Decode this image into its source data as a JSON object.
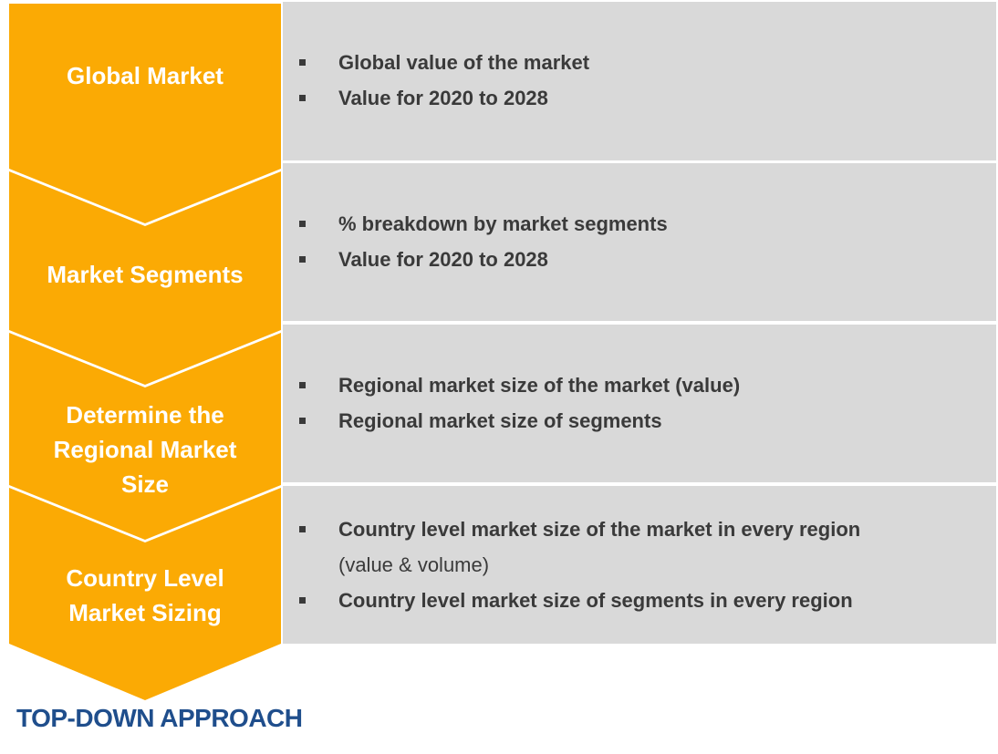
{
  "steps": [
    {
      "label": "Global Market",
      "bullets": [
        "Global value of the market",
        "Value for 2020 to 2028"
      ]
    },
    {
      "label": "Market Segments",
      "bullets": [
        "% breakdown by market segments",
        "Value for 2020 to 2028"
      ]
    },
    {
      "label": "Determine the Regional Market Size",
      "bullets": [
        "Regional market size of the market (value)",
        "Regional market size of segments"
      ]
    },
    {
      "label": "Country Level Market Sizing",
      "bullets": [
        "Country level market size of the market in every region",
        "(value & volume)",
        "Country level market size of segments in every region"
      ]
    }
  ],
  "footer": {
    "title": "TOP-DOWN APPROACH"
  },
  "colors": {
    "chevron": "#FBAA04",
    "panel": "#D9D9D9",
    "text": "#3A3A3A",
    "footer": "#1F4E8C"
  }
}
